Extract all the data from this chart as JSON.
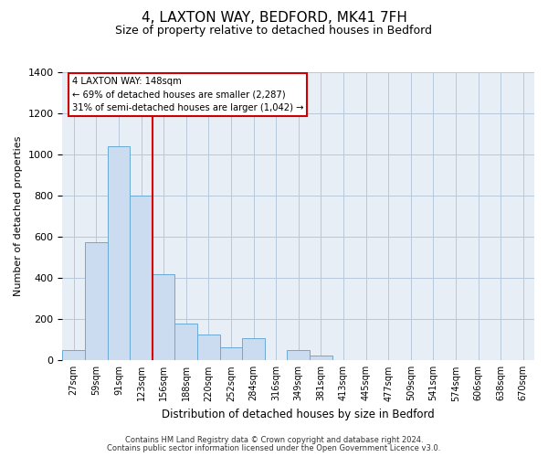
{
  "title": "4, LAXTON WAY, BEDFORD, MK41 7FH",
  "subtitle": "Size of property relative to detached houses in Bedford",
  "xlabel": "Distribution of detached houses by size in Bedford",
  "ylabel": "Number of detached properties",
  "bar_labels": [
    "27sqm",
    "59sqm",
    "91sqm",
    "123sqm",
    "156sqm",
    "188sqm",
    "220sqm",
    "252sqm",
    "284sqm",
    "316sqm",
    "349sqm",
    "381sqm",
    "413sqm",
    "445sqm",
    "477sqm",
    "509sqm",
    "541sqm",
    "574sqm",
    "606sqm",
    "638sqm",
    "670sqm"
  ],
  "bar_values": [
    50,
    575,
    1040,
    800,
    420,
    178,
    125,
    62,
    110,
    0,
    48,
    25,
    0,
    0,
    0,
    0,
    0,
    0,
    0,
    0,
    0
  ],
  "bar_color": "#ccdcf0",
  "bar_edge_color": "#6aaad4",
  "vline_color": "#dd0000",
  "ylim": [
    0,
    1400
  ],
  "yticks": [
    0,
    200,
    400,
    600,
    800,
    1000,
    1200,
    1400
  ],
  "annotation_title": "4 LAXTON WAY: 148sqm",
  "annotation_line1": "← 69% of detached houses are smaller (2,287)",
  "annotation_line2": "31% of semi-detached houses are larger (1,042) →",
  "annotation_box_facecolor": "#ffffff",
  "annotation_box_edge": "#cc0000",
  "footer1": "Contains HM Land Registry data © Crown copyright and database right 2024.",
  "footer2": "Contains public sector information licensed under the Open Government Licence v3.0.",
  "background_color": "#ffffff",
  "plot_bg_color": "#e8eef6",
  "grid_color": "#b8c8dc",
  "title_fontsize": 11,
  "subtitle_fontsize": 9
}
